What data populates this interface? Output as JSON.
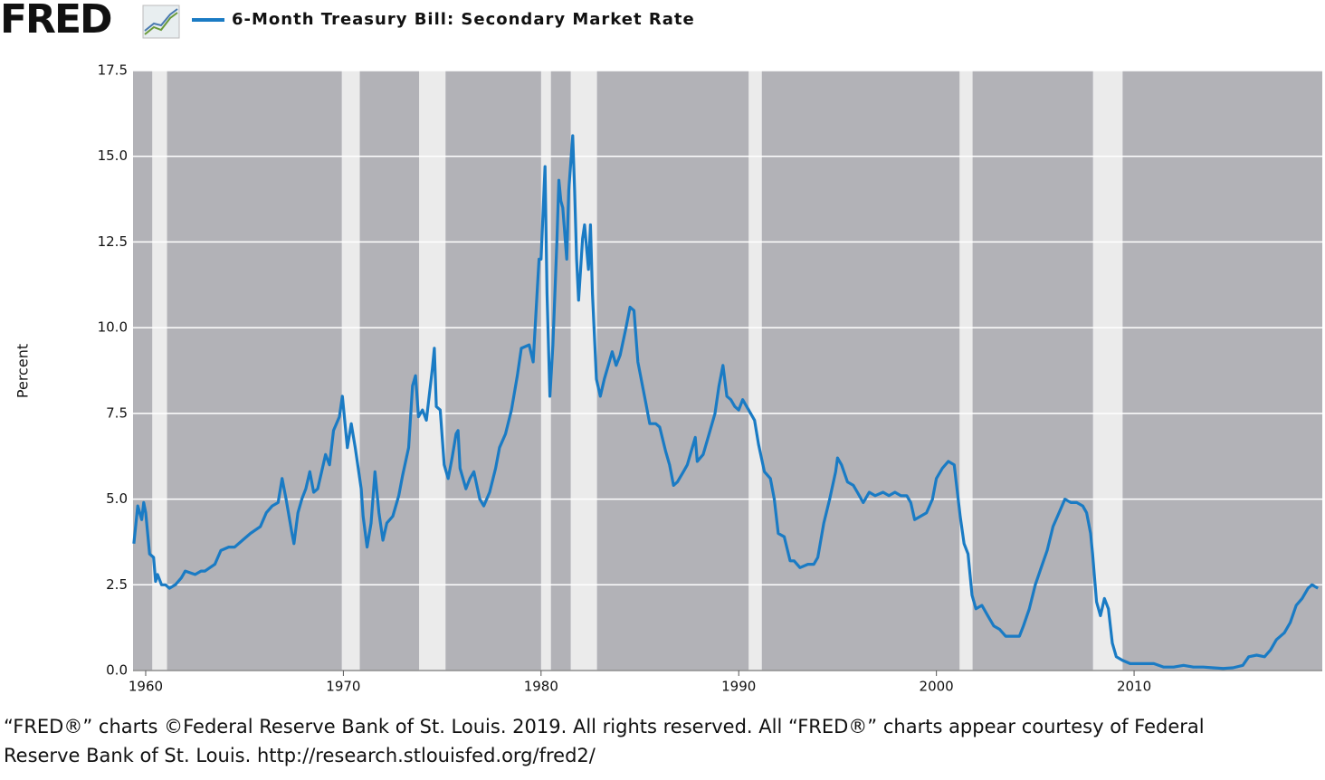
{
  "logo": "FRED",
  "footer": [
    "“FRED®” charts ©Federal Reserve Bank of St. Louis. 2019. All rights reserved. All “FRED®” charts appear courtesy of Federal",
    "Reserve Bank of St. Louis. http://research.stlouisfed.org/fred2/"
  ],
  "chart_data": {
    "type": "line",
    "ylabel": "Percent",
    "xlim": [
      1959.36,
      2019.52
    ],
    "ylim": [
      0,
      17.5
    ],
    "xticks": [
      1960,
      1970,
      1980,
      1990,
      2000,
      2010
    ],
    "yticks": [
      {
        "value": 0,
        "label": "0.0"
      },
      2.5,
      {
        "value": 5,
        "label": "5.0"
      },
      7.5,
      {
        "value": 10,
        "label": "10.0"
      },
      12.5,
      {
        "value": 15,
        "label": "15.0"
      },
      17.5
    ],
    "grid": true,
    "recessions": [
      [
        1960.33,
        1961.08
      ],
      [
        1969.92,
        1970.83
      ],
      [
        1973.83,
        1975.17
      ],
      [
        1980.0,
        1980.5
      ],
      [
        1981.5,
        1982.83
      ],
      [
        1990.5,
        1991.17
      ],
      [
        2001.17,
        2001.83
      ],
      [
        2007.92,
        2009.42
      ]
    ],
    "x": [
      1959.4,
      1959.6,
      1959.8,
      1959.9,
      1960.0,
      1960.2,
      1960.4,
      1960.5,
      1960.6,
      1960.8,
      1961.0,
      1961.2,
      1961.5,
      1961.8,
      1962.0,
      1962.5,
      1962.8,
      1963.0,
      1963.5,
      1963.8,
      1964.2,
      1964.5,
      1964.9,
      1965.3,
      1965.8,
      1966.1,
      1966.4,
      1966.7,
      1966.9,
      1967.1,
      1967.4,
      1967.5,
      1967.7,
      1967.9,
      1968.1,
      1968.3,
      1968.5,
      1968.7,
      1968.9,
      1969.1,
      1969.3,
      1969.5,
      1969.8,
      1969.95,
      1970.1,
      1970.2,
      1970.4,
      1970.6,
      1970.9,
      1971.0,
      1971.2,
      1971.4,
      1971.6,
      1971.8,
      1972.0,
      1972.2,
      1972.5,
      1972.8,
      1973.0,
      1973.3,
      1973.5,
      1973.65,
      1973.8,
      1974.0,
      1974.2,
      1974.5,
      1974.6,
      1974.7,
      1974.9,
      1975.1,
      1975.3,
      1975.5,
      1975.7,
      1975.8,
      1975.9,
      1976.2,
      1976.4,
      1976.6,
      1976.9,
      1977.1,
      1977.4,
      1977.7,
      1977.9,
      1978.2,
      1978.5,
      1978.8,
      1979.0,
      1979.4,
      1979.6,
      1979.8,
      1979.9,
      1980.0,
      1980.2,
      1980.3,
      1980.45,
      1980.6,
      1980.8,
      1980.9,
      1981.0,
      1981.1,
      1981.3,
      1981.4,
      1981.6,
      1981.7,
      1981.8,
      1981.9,
      1982.1,
      1982.2,
      1982.4,
      1982.5,
      1982.6,
      1982.8,
      1983.0,
      1983.2,
      1983.4,
      1983.6,
      1983.8,
      1984.0,
      1984.3,
      1984.5,
      1984.7,
      1984.9,
      1985.1,
      1985.3,
      1985.5,
      1985.8,
      1986.0,
      1986.3,
      1986.5,
      1986.7,
      1986.9,
      1987.2,
      1987.4,
      1987.6,
      1987.8,
      1987.9,
      1988.2,
      1988.5,
      1988.8,
      1989.0,
      1989.2,
      1989.4,
      1989.6,
      1989.8,
      1990.0,
      1990.2,
      1990.5,
      1990.8,
      1991.0,
      1991.3,
      1991.6,
      1991.8,
      1992.0,
      1992.3,
      1992.6,
      1992.8,
      1993.1,
      1993.5,
      1993.8,
      1994.0,
      1994.3,
      1994.6,
      1994.9,
      1995.0,
      1995.2,
      1995.5,
      1995.8,
      1996.0,
      1996.3,
      1996.6,
      1996.9,
      1997.3,
      1997.6,
      1997.9,
      1998.2,
      1998.5,
      1998.7,
      1998.9,
      1999.2,
      1999.5,
      1999.8,
      2000.0,
      2000.3,
      2000.6,
      2000.9,
      2001.0,
      2001.2,
      2001.4,
      2001.6,
      2001.8,
      2002.0,
      2002.3,
      2002.6,
      2002.9,
      2003.2,
      2003.5,
      2003.9,
      2004.2,
      2004.4,
      2004.7,
      2005.0,
      2005.3,
      2005.6,
      2005.9,
      2006.2,
      2006.5,
      2006.8,
      2007.1,
      2007.4,
      2007.6,
      2007.8,
      2007.9,
      2008.1,
      2008.3,
      2008.5,
      2008.7,
      2008.9,
      2009.1,
      2009.4,
      2009.8,
      2010.2,
      2010.6,
      2011.0,
      2011.5,
      2012.0,
      2012.5,
      2013.0,
      2013.5,
      2014.0,
      2014.5,
      2015.0,
      2015.5,
      2015.8,
      2016.2,
      2016.6,
      2016.9,
      2017.2,
      2017.6,
      2017.9,
      2018.2,
      2018.5,
      2018.8,
      2019.0,
      2019.3
    ],
    "series": [
      {
        "name": "6-Month Treasury Bill: Secondary Market Rate",
        "color": "#1a7bc4",
        "values": [
          3.7,
          4.8,
          4.4,
          4.9,
          4.6,
          3.4,
          3.3,
          2.6,
          2.8,
          2.5,
          2.5,
          2.4,
          2.5,
          2.7,
          2.9,
          2.8,
          2.9,
          2.9,
          3.1,
          3.5,
          3.6,
          3.6,
          3.8,
          4.0,
          4.2,
          4.6,
          4.8,
          4.9,
          5.6,
          5.0,
          4.0,
          3.7,
          4.6,
          5.0,
          5.3,
          5.8,
          5.2,
          5.3,
          5.8,
          6.3,
          6.0,
          7.0,
          7.4,
          8.0,
          7.1,
          6.5,
          7.2,
          6.5,
          5.3,
          4.5,
          3.6,
          4.3,
          5.8,
          4.6,
          3.8,
          4.3,
          4.5,
          5.1,
          5.7,
          6.5,
          8.3,
          8.6,
          7.4,
          7.6,
          7.3,
          8.8,
          9.4,
          7.7,
          7.6,
          6.0,
          5.6,
          6.2,
          6.9,
          7.0,
          5.9,
          5.3,
          5.6,
          5.8,
          5.0,
          4.8,
          5.2,
          5.9,
          6.5,
          6.9,
          7.6,
          8.6,
          9.4,
          9.5,
          9.0,
          11.0,
          12.0,
          12.0,
          14.7,
          11.0,
          8.0,
          9.5,
          12.5,
          14.3,
          13.7,
          13.5,
          12.0,
          14.0,
          15.6,
          14.0,
          12.0,
          10.8,
          12.6,
          13.0,
          11.7,
          13.0,
          11.0,
          8.5,
          8.0,
          8.5,
          8.9,
          9.3,
          8.9,
          9.2,
          10.0,
          10.6,
          10.5,
          9.0,
          8.4,
          7.8,
          7.2,
          7.2,
          7.1,
          6.4,
          6.0,
          5.4,
          5.5,
          5.8,
          6.0,
          6.4,
          6.8,
          6.1,
          6.3,
          6.9,
          7.5,
          8.3,
          8.9,
          8.0,
          7.9,
          7.7,
          7.6,
          7.9,
          7.6,
          7.3,
          6.6,
          5.8,
          5.6,
          5.0,
          4.0,
          3.9,
          3.2,
          3.2,
          3.0,
          3.1,
          3.1,
          3.3,
          4.3,
          5.0,
          5.8,
          6.2,
          6.0,
          5.5,
          5.4,
          5.2,
          4.9,
          5.2,
          5.1,
          5.2,
          5.1,
          5.2,
          5.1,
          5.1,
          4.9,
          4.4,
          4.5,
          4.6,
          5.0,
          5.6,
          5.9,
          6.1,
          6.0,
          5.5,
          4.5,
          3.7,
          3.4,
          2.2,
          1.8,
          1.9,
          1.6,
          1.3,
          1.2,
          1.0,
          1.0,
          1.0,
          1.3,
          1.8,
          2.5,
          3.0,
          3.5,
          4.2,
          4.6,
          5.0,
          4.9,
          4.9,
          4.8,
          4.6,
          4.0,
          3.4,
          2.0,
          1.6,
          2.1,
          1.8,
          0.8,
          0.4,
          0.3,
          0.2,
          0.2,
          0.2,
          0.2,
          0.1,
          0.1,
          0.15,
          0.1,
          0.1,
          0.08,
          0.06,
          0.08,
          0.15,
          0.4,
          0.45,
          0.4,
          0.6,
          0.9,
          1.1,
          1.4,
          1.9,
          2.1,
          2.4,
          2.5,
          2.4
        ]
      }
    ]
  }
}
